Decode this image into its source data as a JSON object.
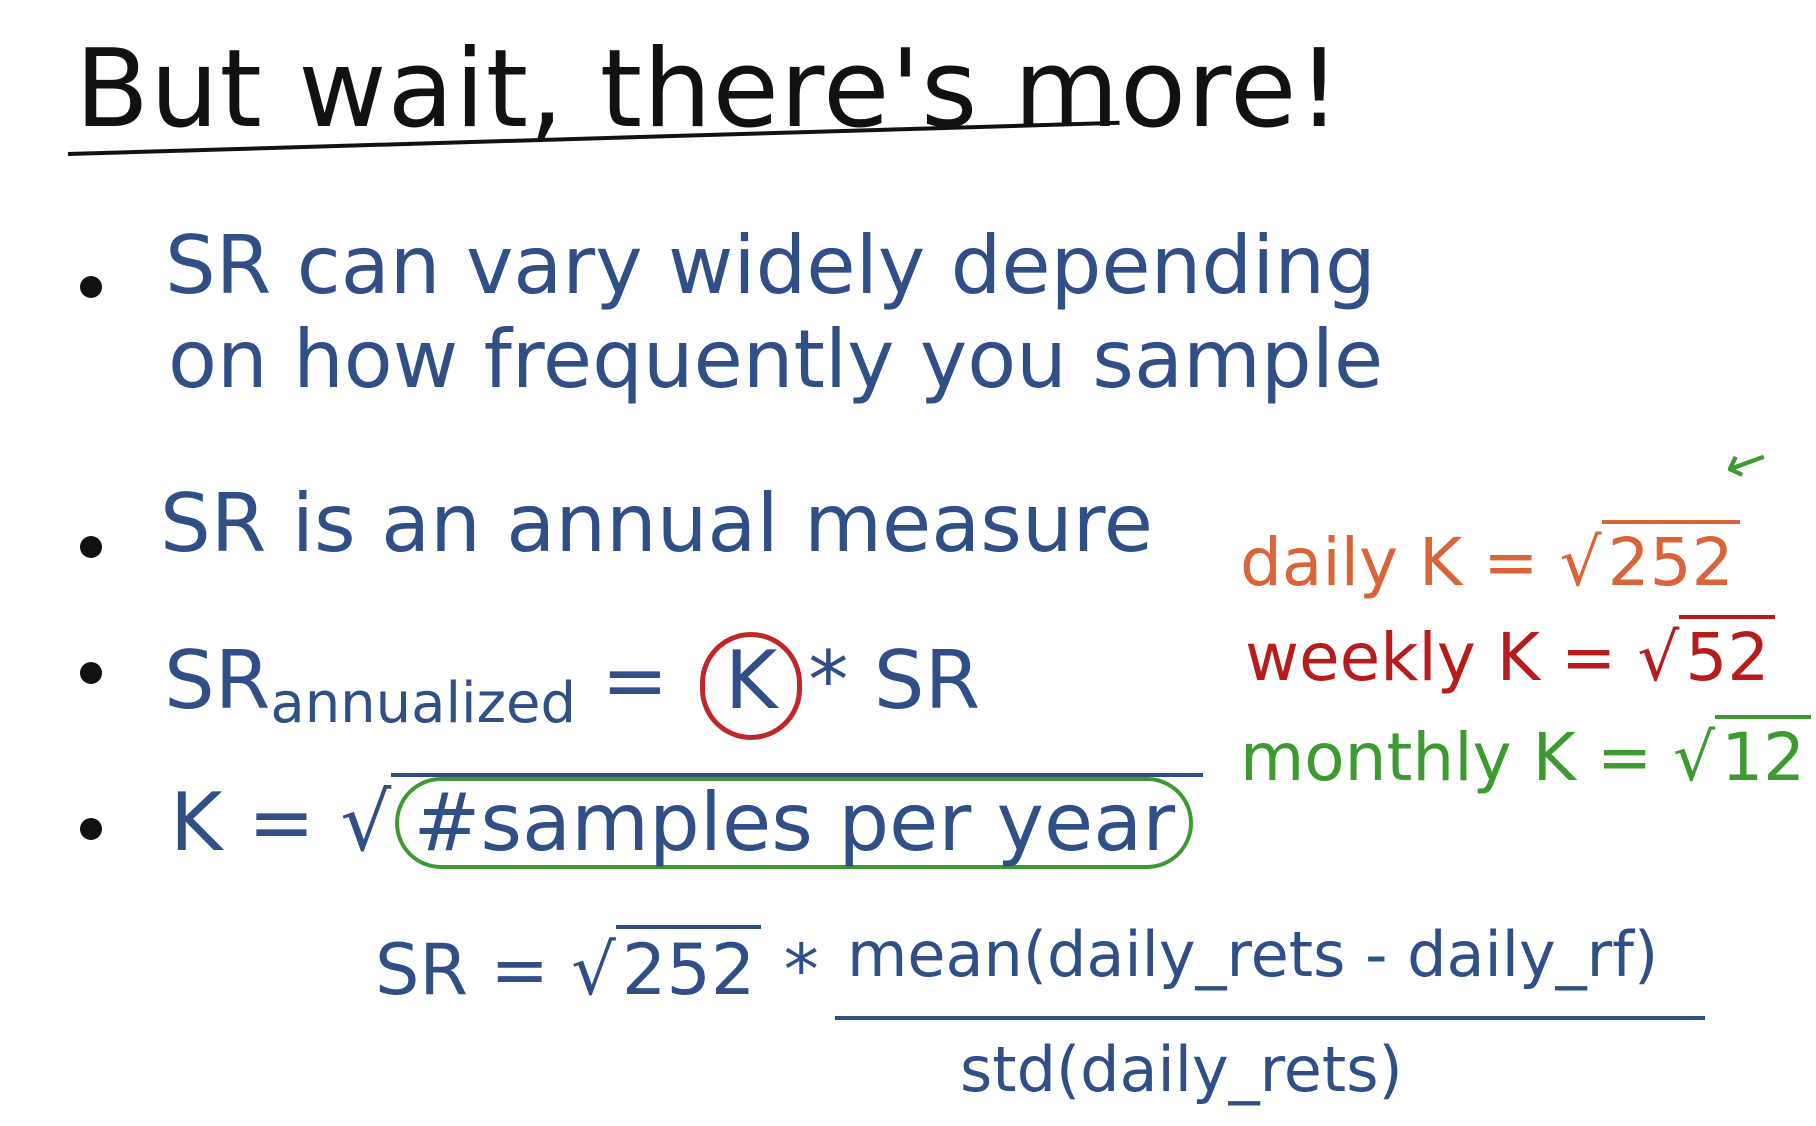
{
  "title": "But wait, there's more!",
  "bullets": {
    "b1_line1": "SR can vary widely depending",
    "b1_line2": "on how frequently you sample",
    "b2": "SR is an annual measure",
    "b3_pre": "SR",
    "b3_sub": "annualized",
    "b3_eq": " = ",
    "b3_k": "K",
    "b3_post": "* SR",
    "b4_pre": "K = √",
    "b4_inner": "#samples per year"
  },
  "formula": {
    "lhs": "SR = √",
    "sqrt_arg": "252",
    "times": " *",
    "numerator": "mean(daily_rets - daily_rf)",
    "denominator": "std(daily_rets)"
  },
  "side_notes": {
    "daily_label": "daily K = √",
    "daily_val": "252",
    "weekly_label": "weekly K = √",
    "weekly_val": "52",
    "monthly_label": "monthly K = √",
    "monthly_val": "12"
  },
  "colors": {
    "ink_blue": "#2f4f86",
    "daily_orange": "#d9643a",
    "weekly_red": "#b71c1c",
    "monthly_green": "#3d9a30",
    "circle_red": "#c0262a"
  }
}
